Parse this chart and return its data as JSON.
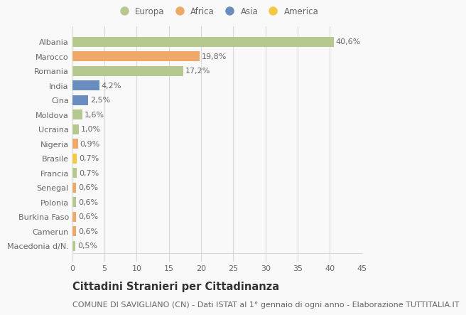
{
  "countries": [
    "Albania",
    "Marocco",
    "Romania",
    "India",
    "Cina",
    "Moldova",
    "Ucraina",
    "Nigeria",
    "Brasile",
    "Francia",
    "Senegal",
    "Polonia",
    "Burkina Faso",
    "Camerun",
    "Macedonia d/N."
  ],
  "values": [
    40.6,
    19.8,
    17.2,
    4.2,
    2.5,
    1.6,
    1.0,
    0.9,
    0.7,
    0.7,
    0.6,
    0.6,
    0.6,
    0.6,
    0.5
  ],
  "labels": [
    "40,6%",
    "19,8%",
    "17,2%",
    "4,2%",
    "2,5%",
    "1,6%",
    "1,0%",
    "0,9%",
    "0,7%",
    "0,7%",
    "0,6%",
    "0,6%",
    "0,6%",
    "0,6%",
    "0,5%"
  ],
  "continents": [
    "Europa",
    "Africa",
    "Europa",
    "Asia",
    "Asia",
    "Europa",
    "Europa",
    "Africa",
    "America",
    "Europa",
    "Africa",
    "Europa",
    "Africa",
    "Africa",
    "Europa"
  ],
  "colors": {
    "Europa": "#b5c98e",
    "Africa": "#f0a868",
    "Asia": "#6a8dc0",
    "America": "#f5c842"
  },
  "xlim": [
    0,
    45
  ],
  "xticks": [
    0,
    5,
    10,
    15,
    20,
    25,
    30,
    35,
    40,
    45
  ],
  "title": "Cittadini Stranieri per Cittadinanza",
  "subtitle": "COMUNE DI SAVIGLIANO (CN) - Dati ISTAT al 1° gennaio di ogni anno - Elaborazione TUTTITALIA.IT",
  "bg_color": "#f9f9f9",
  "grid_color": "#d8d8d8",
  "bar_height": 0.68,
  "title_fontsize": 10.5,
  "subtitle_fontsize": 8,
  "tick_fontsize": 8,
  "label_fontsize": 8,
  "legend_fontsize": 8.5,
  "legend_order": [
    "Europa",
    "Africa",
    "Asia",
    "America"
  ]
}
